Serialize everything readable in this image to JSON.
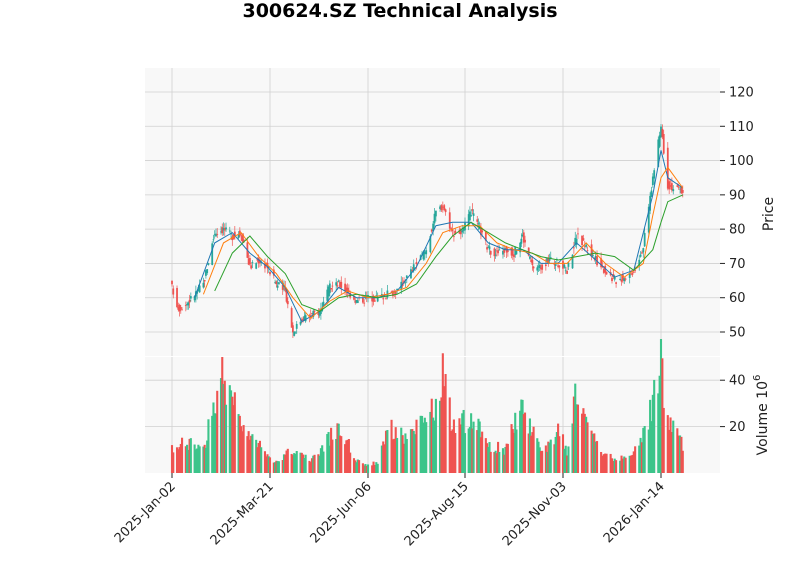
{
  "chart_data": {
    "type": "candlestick",
    "title": "300624.SZ Technical Analysis",
    "colors": {
      "up": "#26a69a",
      "up_vol": "#3cc48a",
      "down": "#ef5350",
      "ma_short": "#1f77b4",
      "ma_mid": "#ff7f0e",
      "ma_long": "#2ca02c",
      "grid": "#d0d0d0",
      "panel_bg": "#f8f8f8"
    },
    "date_range": [
      "2025-01-02",
      "2026-01-30"
    ],
    "x_ticks": [
      "2025-Jan-02",
      "2025-Mar-21",
      "2025-Jun-06",
      "2025-Aug-15",
      "2025-Nov-03",
      "2026-Jan-14"
    ],
    "price_panel": {
      "ylabel": "Price",
      "ylim": [
        43,
        127
      ],
      "yticks": [
        50,
        60,
        70,
        80,
        90,
        100,
        110,
        120
      ],
      "close_path": [
        [
          "2025-01-02",
          63
        ],
        [
          "2025-01-07",
          57
        ],
        [
          "2025-01-13",
          58
        ],
        [
          "2025-01-20",
          61
        ],
        [
          "2025-01-27",
          64
        ],
        [
          "2025-02-05",
          79
        ],
        [
          "2025-02-12",
          80
        ],
        [
          "2025-02-19",
          78
        ],
        [
          "2025-02-26",
          79
        ],
        [
          "2025-03-05",
          69
        ],
        [
          "2025-03-12",
          71
        ],
        [
          "2025-03-19",
          69
        ],
        [
          "2025-03-26",
          64
        ],
        [
          "2025-04-02",
          62
        ],
        [
          "2025-04-08",
          50
        ],
        [
          "2025-04-15",
          54
        ],
        [
          "2025-04-22",
          55
        ],
        [
          "2025-04-29",
          56
        ],
        [
          "2025-05-07",
          63
        ],
        [
          "2025-05-14",
          64
        ],
        [
          "2025-05-21",
          62
        ],
        [
          "2025-05-28",
          59
        ],
        [
          "2025-06-06",
          60
        ],
        [
          "2025-06-13",
          60
        ],
        [
          "2025-06-20",
          61
        ],
        [
          "2025-06-27",
          62
        ],
        [
          "2025-07-04",
          66
        ],
        [
          "2025-07-11",
          70
        ],
        [
          "2025-07-18",
          74
        ],
        [
          "2025-07-25",
          85
        ],
        [
          "2025-07-30",
          87
        ],
        [
          "2025-08-06",
          79
        ],
        [
          "2025-08-13",
          79
        ],
        [
          "2025-08-20",
          85
        ],
        [
          "2025-08-27",
          80
        ],
        [
          "2025-09-03",
          74
        ],
        [
          "2025-09-10",
          73
        ],
        [
          "2025-09-17",
          74
        ],
        [
          "2025-09-24",
          73
        ],
        [
          "2025-10-01",
          78
        ],
        [
          "2025-10-09",
          69
        ],
        [
          "2025-10-16",
          69
        ],
        [
          "2025-10-23",
          71
        ],
        [
          "2025-10-30",
          70
        ],
        [
          "2025-11-06",
          68
        ],
        [
          "2025-11-13",
          78
        ],
        [
          "2025-11-20",
          75
        ],
        [
          "2025-11-27",
          71
        ],
        [
          "2025-12-04",
          68
        ],
        [
          "2025-12-11",
          65
        ],
        [
          "2025-12-18",
          66
        ],
        [
          "2025-12-25",
          68
        ],
        [
          "2026-01-01",
          75
        ],
        [
          "2026-01-08",
          95
        ],
        [
          "2026-01-14",
          110
        ],
        [
          "2026-01-19",
          93
        ],
        [
          "2026-01-23",
          92
        ],
        [
          "2026-01-30",
          91
        ]
      ],
      "ma_short_path": [
        [
          "2025-01-20",
          60
        ],
        [
          "2025-02-05",
          76
        ],
        [
          "2025-02-19",
          79
        ],
        [
          "2025-03-05",
          73
        ],
        [
          "2025-03-19",
          69
        ],
        [
          "2025-04-02",
          63
        ],
        [
          "2025-04-15",
          53
        ],
        [
          "2025-04-29",
          56
        ],
        [
          "2025-05-14",
          63
        ],
        [
          "2025-05-28",
          60
        ],
        [
          "2025-06-13",
          60
        ],
        [
          "2025-06-27",
          62
        ],
        [
          "2025-07-11",
          69
        ],
        [
          "2025-07-25",
          81
        ],
        [
          "2025-08-06",
          82
        ],
        [
          "2025-08-20",
          82
        ],
        [
          "2025-09-03",
          76
        ],
        [
          "2025-09-17",
          74
        ],
        [
          "2025-10-01",
          74
        ],
        [
          "2025-10-16",
          70
        ],
        [
          "2025-10-30",
          70
        ],
        [
          "2025-11-13",
          76
        ],
        [
          "2025-11-27",
          71
        ],
        [
          "2025-12-11",
          66
        ],
        [
          "2025-12-25",
          68
        ],
        [
          "2026-01-08",
          90
        ],
        [
          "2026-01-14",
          103
        ],
        [
          "2026-01-19",
          95
        ],
        [
          "2026-01-30",
          92
        ]
      ],
      "ma_mid_path": [
        [
          "2025-01-27",
          61
        ],
        [
          "2025-02-12",
          76
        ],
        [
          "2025-02-26",
          79
        ],
        [
          "2025-03-12",
          72
        ],
        [
          "2025-03-26",
          67
        ],
        [
          "2025-04-08",
          60
        ],
        [
          "2025-04-22",
          54
        ],
        [
          "2025-05-07",
          59
        ],
        [
          "2025-05-21",
          62
        ],
        [
          "2025-06-06",
          60
        ],
        [
          "2025-06-20",
          61
        ],
        [
          "2025-07-04",
          63
        ],
        [
          "2025-07-18",
          70
        ],
        [
          "2025-07-30",
          79
        ],
        [
          "2025-08-13",
          81
        ],
        [
          "2025-08-27",
          81
        ],
        [
          "2025-09-10",
          76
        ],
        [
          "2025-09-24",
          74
        ],
        [
          "2025-10-09",
          73
        ],
        [
          "2025-10-23",
          70
        ],
        [
          "2025-11-06",
          70
        ],
        [
          "2025-11-20",
          76
        ],
        [
          "2025-12-04",
          70
        ],
        [
          "2025-12-18",
          66
        ],
        [
          "2026-01-01",
          70
        ],
        [
          "2026-01-08",
          84
        ],
        [
          "2026-01-14",
          95
        ],
        [
          "2026-01-19",
          98
        ],
        [
          "2026-01-30",
          92
        ]
      ],
      "ma_long_path": [
        [
          "2025-02-05",
          62
        ],
        [
          "2025-02-19",
          73
        ],
        [
          "2025-03-05",
          78
        ],
        [
          "2025-03-19",
          72
        ],
        [
          "2025-04-02",
          67
        ],
        [
          "2025-04-15",
          58
        ],
        [
          "2025-04-29",
          56
        ],
        [
          "2025-05-14",
          60
        ],
        [
          "2025-05-28",
          61
        ],
        [
          "2025-06-13",
          60
        ],
        [
          "2025-06-27",
          61
        ],
        [
          "2025-07-11",
          64
        ],
        [
          "2025-07-25",
          72
        ],
        [
          "2025-08-06",
          78
        ],
        [
          "2025-08-20",
          82
        ],
        [
          "2025-09-03",
          79
        ],
        [
          "2025-09-17",
          76
        ],
        [
          "2025-10-01",
          74
        ],
        [
          "2025-10-16",
          72
        ],
        [
          "2025-10-30",
          71
        ],
        [
          "2025-11-13",
          72
        ],
        [
          "2025-11-27",
          73
        ],
        [
          "2025-12-11",
          72
        ],
        [
          "2025-12-25",
          68
        ],
        [
          "2026-01-08",
          74
        ],
        [
          "2026-01-14",
          82
        ],
        [
          "2026-01-19",
          88
        ],
        [
          "2026-01-30",
          90
        ]
      ]
    },
    "volume_panel": {
      "ylabel": "Volume  10",
      "ylabel_exponent": "6",
      "ylim": [
        0,
        50
      ],
      "yticks": [
        20,
        40
      ],
      "tick_labels": [
        "20",
        "40"
      ],
      "volume_path": [
        [
          "2025-01-02",
          10
        ],
        [
          "2025-01-13",
          13
        ],
        [
          "2025-01-27",
          10
        ],
        [
          "2025-02-05",
          30
        ],
        [
          "2025-02-09",
          45
        ],
        [
          "2025-02-16",
          36
        ],
        [
          "2025-02-26",
          20
        ],
        [
          "2025-03-12",
          12
        ],
        [
          "2025-03-26",
          5
        ],
        [
          "2025-04-08",
          10
        ],
        [
          "2025-04-22",
          5
        ],
        [
          "2025-05-07",
          15
        ],
        [
          "2025-05-14",
          20
        ],
        [
          "2025-05-28",
          6
        ],
        [
          "2025-06-06",
          3
        ],
        [
          "2025-06-13",
          5
        ],
        [
          "2025-06-20",
          20
        ],
        [
          "2025-07-04",
          15
        ],
        [
          "2025-07-18",
          22
        ],
        [
          "2025-07-25",
          30
        ],
        [
          "2025-07-30",
          42
        ],
        [
          "2025-08-06",
          20
        ],
        [
          "2025-08-20",
          24
        ],
        [
          "2025-09-03",
          12
        ],
        [
          "2025-09-17",
          10
        ],
        [
          "2025-10-01",
          30
        ],
        [
          "2025-10-16",
          8
        ],
        [
          "2025-10-30",
          18
        ],
        [
          "2025-11-06",
          10
        ],
        [
          "2025-11-13",
          38
        ],
        [
          "2025-11-27",
          12
        ],
        [
          "2025-12-11",
          6
        ],
        [
          "2025-12-25",
          8
        ],
        [
          "2026-01-01",
          18
        ],
        [
          "2026-01-08",
          30
        ],
        [
          "2026-01-14",
          47
        ],
        [
          "2026-01-19",
          20
        ],
        [
          "2026-01-23",
          22
        ],
        [
          "2026-01-30",
          12
        ]
      ]
    }
  }
}
